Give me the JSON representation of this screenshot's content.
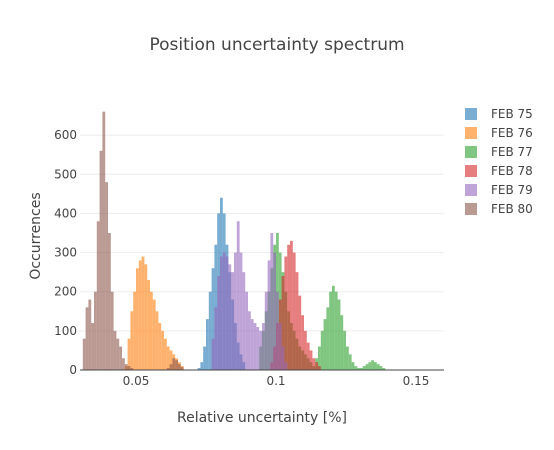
{
  "chart_data": {
    "type": "histogram",
    "title": "Position uncertainty spectrum",
    "xlabel": "Relative uncertainty [%]",
    "ylabel": "Occurrences",
    "xlim": [
      0.03,
      0.16
    ],
    "ylim": [
      0,
      700
    ],
    "x_ticks": [
      {
        "value": 0.05,
        "label": "0.05"
      },
      {
        "value": 0.1,
        "label": "0.1"
      },
      {
        "value": 0.15,
        "label": "0.15"
      }
    ],
    "y_ticks": [
      {
        "value": 0,
        "label": "0"
      },
      {
        "value": 100,
        "label": "100"
      },
      {
        "value": 200,
        "label": "200"
      },
      {
        "value": 300,
        "label": "300"
      },
      {
        "value": 400,
        "label": "400"
      },
      {
        "value": 500,
        "label": "500"
      },
      {
        "value": 600,
        "label": "600"
      }
    ],
    "grid": true,
    "legend_position": "right",
    "bin_width": 0.001,
    "opacity": 0.6,
    "series": [
      {
        "name": "FEB 75",
        "color": "#1f77b4",
        "x_start": 0.072,
        "counts": [
          5,
          20,
          60,
          130,
          200,
          260,
          320,
          400,
          440,
          400,
          320,
          250,
          180,
          120,
          70,
          40,
          20
        ]
      },
      {
        "name": "FEB 76",
        "color": "#ff7f0e",
        "x_start": 0.046,
        "counts": [
          10,
          80,
          150,
          200,
          260,
          280,
          290,
          270,
          230,
          200,
          180,
          150,
          120,
          100,
          80,
          60,
          50,
          40,
          30,
          20,
          10
        ]
      },
      {
        "name": "FEB 77",
        "color": "#2ca02c",
        "x_start": 0.094,
        "counts": [
          60,
          100,
          150,
          200,
          260,
          320,
          350,
          300,
          250,
          200,
          150,
          120,
          100,
          80,
          60,
          50,
          40,
          30,
          20,
          10,
          30,
          60,
          100,
          130,
          160,
          200,
          215,
          200,
          180,
          140,
          100,
          60,
          40,
          20,
          10,
          5,
          5,
          10,
          15,
          20,
          25,
          20,
          15,
          10,
          5
        ]
      },
      {
        "name": "FEB 78",
        "color": "#d62728",
        "x_start": 0.098,
        "counts": [
          20,
          60,
          120,
          180,
          240,
          290,
          320,
          330,
          300,
          250,
          190,
          140,
          100,
          70,
          50,
          30,
          20,
          10
        ]
      },
      {
        "name": "FEB 79",
        "color": "#9467bd",
        "x_start": 0.077,
        "counts": [
          80,
          160,
          240,
          290,
          300,
          290,
          270,
          250,
          300,
          380,
          300,
          250,
          200,
          150,
          130,
          120,
          110,
          100,
          120,
          200,
          280,
          350,
          300,
          200,
          120,
          60,
          20
        ]
      },
      {
        "name": "FEB 80",
        "color": "#8c564b",
        "x_start": 0.031,
        "counts": [
          80,
          160,
          180,
          120,
          200,
          380,
          560,
          660,
          480,
          350,
          200,
          100,
          80,
          60,
          30,
          15,
          10,
          5,
          0,
          0,
          0,
          0,
          0,
          0,
          0,
          0,
          0,
          0,
          0,
          0,
          5,
          15,
          30,
          25,
          15,
          8
        ]
      }
    ]
  }
}
